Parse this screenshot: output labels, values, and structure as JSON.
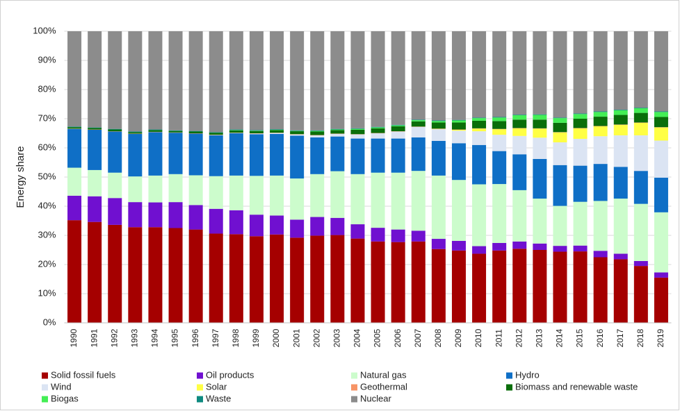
{
  "chart_data": {
    "type": "stacked_bar",
    "y_label": "Energy share",
    "categories": [
      "1990",
      "1991",
      "1992",
      "1993",
      "1994",
      "1995",
      "1996",
      "1997",
      "1998",
      "1999",
      "2000",
      "2001",
      "2002",
      "2003",
      "2004",
      "2005",
      "2006",
      "2007",
      "2008",
      "2009",
      "2010",
      "2011",
      "2012",
      "2013",
      "2014",
      "2015",
      "2016",
      "2017",
      "2018",
      "2019"
    ],
    "series": [
      {
        "name": "Solid fossil fuels",
        "color": "#a50000",
        "values": [
          35.2,
          34.6,
          33.6,
          32.8,
          32.8,
          32.5,
          32.0,
          30.6,
          30.4,
          29.7,
          30.3,
          29.2,
          29.9,
          30.1,
          28.9,
          27.9,
          27.7,
          27.9,
          25.3,
          24.8,
          23.7,
          24.8,
          25.4,
          25.0,
          24.4,
          24.5,
          22.5,
          21.8,
          19.5,
          15.5
        ]
      },
      {
        "name": "Oil products",
        "color": "#7010d0",
        "values": [
          8.4,
          8.8,
          9.2,
          8.6,
          8.5,
          8.9,
          8.4,
          8.5,
          8.2,
          7.4,
          6.5,
          6.2,
          6.4,
          5.9,
          4.9,
          4.7,
          4.3,
          3.7,
          3.5,
          3.3,
          2.6,
          2.6,
          2.5,
          2.2,
          2.0,
          2.0,
          2.2,
          1.9,
          1.7,
          1.8
        ]
      },
      {
        "name": "Natural gas",
        "color": "#ccfccc",
        "values": [
          9.6,
          9.0,
          8.7,
          8.8,
          9.2,
          9.6,
          10.2,
          11.2,
          11.9,
          13.3,
          13.7,
          14.1,
          14.7,
          16.0,
          17.2,
          18.9,
          19.5,
          20.5,
          21.7,
          20.9,
          21.2,
          20.2,
          17.6,
          15.4,
          13.7,
          15.0,
          17.1,
          18.9,
          19.6,
          20.6
        ]
      },
      {
        "name": "Hydro",
        "color": "#0f6fc6",
        "values": [
          13.3,
          13.8,
          14.1,
          14.6,
          14.9,
          14.2,
          14.3,
          14.0,
          14.5,
          14.3,
          14.3,
          14.7,
          12.6,
          11.9,
          12.2,
          11.7,
          11.7,
          11.5,
          11.9,
          12.6,
          13.5,
          11.3,
          12.3,
          13.6,
          14.0,
          12.4,
          12.7,
          10.9,
          11.3,
          11.9
        ]
      },
      {
        "name": "Wind",
        "color": "#dbe4f3",
        "values": [
          0,
          0,
          0,
          0,
          0,
          0,
          0,
          0.1,
          0.1,
          0.2,
          0.3,
          0.4,
          0.7,
          0.9,
          1.4,
          1.8,
          2.4,
          3.6,
          4.0,
          4.3,
          4.7,
          5.6,
          6.3,
          7.3,
          7.8,
          9.2,
          9.5,
          10.8,
          12.2,
          12.7
        ]
      },
      {
        "name": "Solar",
        "color": "#ffff44",
        "values": [
          0,
          0,
          0,
          0,
          0,
          0,
          0,
          0,
          0,
          0,
          0,
          0,
          0,
          0,
          0,
          0,
          0,
          0,
          0.1,
          0.3,
          0.9,
          1.9,
          2.6,
          3.1,
          3.4,
          3.6,
          3.4,
          3.6,
          4.3,
          4.5
        ]
      },
      {
        "name": "Geothermal",
        "color": "#f79466",
        "values": [
          0.1,
          0.1,
          0.1,
          0.1,
          0.1,
          0.1,
          0.1,
          0.1,
          0.1,
          0.1,
          0.1,
          0.1,
          0.1,
          0.1,
          0.1,
          0.1,
          0.1,
          0.1,
          0.1,
          0.1,
          0.1,
          0.1,
          0.1,
          0.1,
          0.1,
          0.1,
          0.1,
          0.1,
          0.1,
          0.1
        ]
      },
      {
        "name": "Biomass and renewable waste",
        "color": "#0a6e0a",
        "values": [
          0.5,
          0.5,
          0.6,
          0.5,
          0.6,
          0.5,
          0.6,
          0.7,
          0.8,
          0.8,
          0.9,
          1.0,
          1.2,
          1.2,
          1.5,
          1.6,
          1.7,
          1.8,
          2.1,
          2.4,
          2.6,
          2.7,
          2.9,
          3.0,
          3.2,
          3.2,
          3.2,
          3.3,
          3.3,
          3.5
        ]
      },
      {
        "name": "Biogas",
        "color": "#44ee55",
        "values": [
          0,
          0,
          0,
          0,
          0,
          0,
          0,
          0,
          0.1,
          0.1,
          0.1,
          0.1,
          0.2,
          0.2,
          0.3,
          0.3,
          0.3,
          0.4,
          0.5,
          0.7,
          0.9,
          1.2,
          1.5,
          1.6,
          1.6,
          1.6,
          1.6,
          1.6,
          1.6,
          1.7
        ]
      },
      {
        "name": "Waste",
        "color": "#0e8a80",
        "values": [
          0.2,
          0.2,
          0.2,
          0.2,
          0.2,
          0.2,
          0.2,
          0.2,
          0.2,
          0.2,
          0.2,
          0.2,
          0.2,
          0.2,
          0.2,
          0.2,
          0.2,
          0.2,
          0.2,
          0.2,
          0.2,
          0.2,
          0.2,
          0.2,
          0.2,
          0.2,
          0.2,
          0.2,
          0.2,
          0.2
        ]
      },
      {
        "name": "Nuclear",
        "color": "#8c8c8c",
        "values": [
          32.7,
          33.0,
          33.5,
          34.4,
          33.7,
          34.0,
          34.2,
          34.6,
          33.7,
          33.9,
          33.6,
          34.0,
          34.0,
          33.5,
          33.3,
          32.8,
          32.1,
          30.3,
          30.6,
          30.4,
          29.6,
          29.4,
          28.6,
          28.5,
          29.6,
          28.2,
          27.5,
          26.9,
          26.2,
          27.5
        ]
      }
    ],
    "ylim": [
      0,
      100
    ],
    "yticks": [
      {
        "value": 0,
        "label": "0%"
      },
      {
        "value": 10,
        "label": "10%"
      },
      {
        "value": 20,
        "label": "20%"
      },
      {
        "value": 30,
        "label": "30%"
      },
      {
        "value": 40,
        "label": "40%"
      },
      {
        "value": 50,
        "label": "50%"
      },
      {
        "value": 60,
        "label": "60%"
      },
      {
        "value": 70,
        "label": "70%"
      },
      {
        "value": 80,
        "label": "80%"
      },
      {
        "value": 90,
        "label": "90%"
      },
      {
        "value": 100,
        "label": "100%"
      }
    ],
    "grid": true,
    "legend": "bottom"
  }
}
